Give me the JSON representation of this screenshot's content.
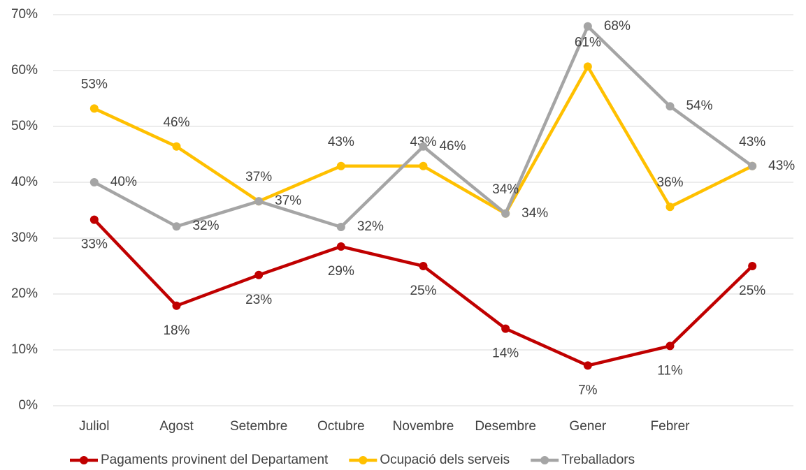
{
  "chart_data": {
    "type": "line",
    "categories": [
      "Juliol",
      "Agost",
      "Setembre",
      "Octubre",
      "Novembre",
      "Desembre",
      "Gener",
      "Febrer",
      null
    ],
    "series": [
      {
        "name": "Pagaments provinent del Departament",
        "color": "#c00000",
        "values": [
          33.3,
          17.9,
          23.4,
          28.5,
          25,
          13.8,
          7.2,
          10.7,
          25
        ],
        "value_labels": [
          "33%",
          "18%",
          "23%",
          "29%",
          "25%",
          "14%",
          "7%",
          "11%",
          "25%"
        ]
      },
      {
        "name": "Ocupació dels serveis",
        "color": "#ffc000",
        "values": [
          53.2,
          46.4,
          36.6,
          42.9,
          42.9,
          34.4,
          60.7,
          35.6,
          42.9
        ],
        "value_labels": [
          "53%",
          "46%",
          "37%",
          "43%",
          "43%",
          "34%",
          "61%",
          "36%",
          "43%"
        ]
      },
      {
        "name": "Treballadors",
        "color": "#a5a5a5",
        "values": [
          40,
          32.1,
          36.6,
          32,
          46.4,
          34.4,
          67.9,
          53.6,
          42.9
        ],
        "value_labels": [
          "40%",
          "32%",
          "37%",
          "32%",
          "46%",
          "34%",
          "68%",
          "54%",
          "43%"
        ]
      }
    ],
    "ylim": [
      0,
      70
    ],
    "yticks": [
      {
        "value": 0,
        "label": "0%"
      },
      {
        "value": 10,
        "label": "10%"
      },
      {
        "value": 20,
        "label": "20%"
      },
      {
        "value": 30,
        "label": "30%"
      },
      {
        "value": 40,
        "label": "40%"
      },
      {
        "value": 50,
        "label": "50%"
      },
      {
        "value": 60,
        "label": "60%"
      },
      {
        "value": 70,
        "label": "70%"
      }
    ],
    "grid": true,
    "legend": "bottom"
  }
}
